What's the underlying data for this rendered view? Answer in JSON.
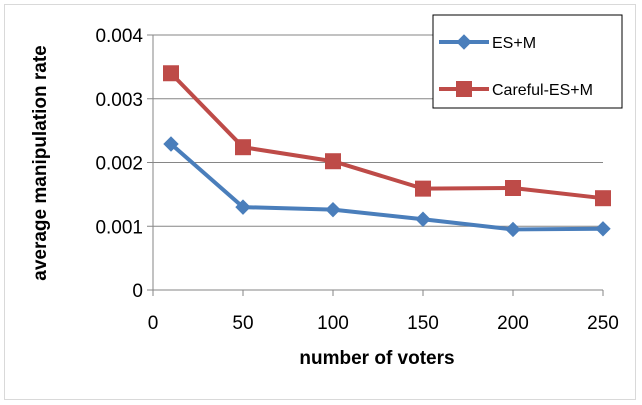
{
  "chart_data": {
    "type": "line",
    "title": "",
    "xlabel": "number of voters",
    "ylabel": "average manipulation rate",
    "xlim": [
      0,
      250
    ],
    "ylim": [
      0,
      0.004
    ],
    "x_ticks": [
      0,
      50,
      100,
      150,
      200,
      250
    ],
    "y_ticks": [
      0,
      0.001,
      0.002,
      0.003,
      0.004
    ],
    "x_tick_labels": [
      "0",
      "50",
      "100",
      "150",
      "200",
      "250"
    ],
    "y_tick_labels": [
      "0",
      "0.001",
      "0.002",
      "0.003",
      "0.004"
    ],
    "grid": "horizontal",
    "legend_position": "top-right",
    "series": [
      {
        "name": "ES+M",
        "color": "#4a7ebb",
        "marker": "diamond",
        "x": [
          10,
          50,
          100,
          150,
          200,
          250
        ],
        "values": [
          0.00229,
          0.0013,
          0.00126,
          0.00111,
          0.00095,
          0.00096
        ]
      },
      {
        "name": "Careful-ES+M",
        "color": "#be4b48",
        "marker": "square",
        "x": [
          10,
          50,
          100,
          150,
          200,
          250
        ],
        "values": [
          0.0034,
          0.00224,
          0.00202,
          0.00159,
          0.0016,
          0.00144
        ]
      }
    ]
  }
}
